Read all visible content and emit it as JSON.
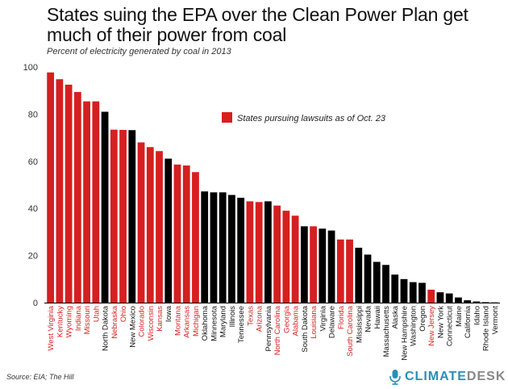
{
  "chart_data": {
    "type": "bar",
    "title": "States suing the EPA over the Clean Power Plan get much of their power from coal",
    "subtitle": "Percent of electricity generated by coal in 2013",
    "xlabel": "",
    "ylabel": "",
    "ylim": [
      0,
      100
    ],
    "yticks": [
      0,
      20,
      40,
      60,
      80,
      100
    ],
    "legend": {
      "label": "States pursuing lawsuits as of Oct. 23",
      "color": "#d61f1f",
      "placement": "upper-middle"
    },
    "colors": {
      "lawsuit": "#d61f1f",
      "other": "#000000"
    },
    "categories": [
      "West Virginia",
      "Kentucky",
      "Wyoming",
      "Indiana",
      "Missouri",
      "Utah",
      "North Dakota",
      "Nebraska",
      "Ohio",
      "New Mexico",
      "Colorado",
      "Wisconsin",
      "Kansas",
      "Iowa",
      "Montana",
      "Arkansas",
      "Michigan",
      "Oklahoma",
      "Minnesota",
      "Maryland",
      "Illinois",
      "Tennessee",
      "Texas",
      "Arizona",
      "Pennsylvania",
      "North Carolina",
      "Georgia",
      "Alabama",
      "South Dakota",
      "Louisiana",
      "Virginia",
      "Delaware",
      "Florida",
      "South Carolina",
      "Mississippi",
      "Nevada",
      "Hawaii",
      "Massachusetts",
      "Alaska",
      "New Hampshire",
      "Washington",
      "Oregon",
      "New Jersey",
      "New York",
      "Connecticut",
      "Maine",
      "California",
      "Idaho",
      "Rhode Island",
      "Vermont"
    ],
    "values": [
      97.7,
      94.8,
      92.5,
      89.4,
      85.4,
      85.4,
      81.0,
      73.4,
      73.3,
      73.2,
      68.0,
      66.0,
      64.3,
      61.1,
      58.6,
      58.2,
      55.4,
      47.2,
      46.8,
      46.8,
      45.7,
      44.5,
      43.0,
      42.7,
      43.0,
      41.2,
      39.0,
      36.9,
      32.4,
      32.4,
      31.4,
      30.6,
      26.8,
      26.8,
      23.3,
      20.4,
      17.3,
      16.0,
      11.9,
      10.0,
      8.7,
      8.4,
      5.5,
      4.4,
      3.9,
      2.2,
      1.0,
      0.5,
      0.2,
      0.1
    ],
    "lawsuit": [
      true,
      true,
      true,
      true,
      true,
      true,
      false,
      true,
      true,
      false,
      true,
      true,
      true,
      false,
      true,
      true,
      true,
      false,
      false,
      false,
      false,
      false,
      true,
      true,
      false,
      true,
      true,
      true,
      false,
      true,
      false,
      false,
      true,
      true,
      false,
      false,
      false,
      false,
      false,
      false,
      false,
      false,
      true,
      false,
      false,
      false,
      false,
      false,
      false,
      false
    ]
  },
  "source": "Source: EIA; The Hill",
  "brand": {
    "part1": "CLIMATE",
    "part2": "DESK",
    "accent": "#2a8fb4",
    "secondary": "#888888"
  }
}
